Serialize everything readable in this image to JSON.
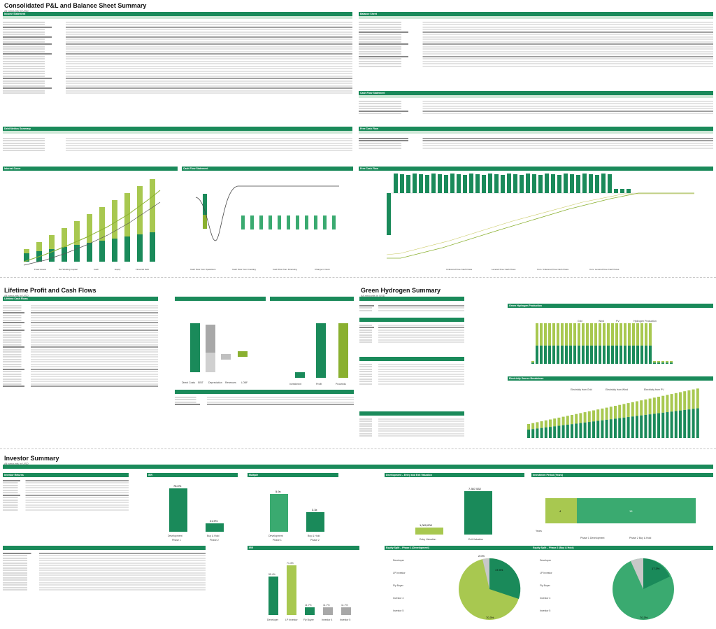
{
  "sections": {
    "consolidated": {
      "title": "Consolidated P&L and Balance Sheet Summary",
      "sub": "All amounts in USD"
    },
    "lifetime": {
      "title": "Lifetime Profit and Cash Flows",
      "sub": "All amounts in USD"
    },
    "green": {
      "title": "Green Hydrogen Summary",
      "sub": "All amounts in USD"
    },
    "investor": {
      "title": "Investor Summary",
      "sub": "All amounts in USD"
    }
  },
  "tables": {
    "income": "Income Statement",
    "balance": "Balance Sheet",
    "cashflow": "Cash Flow Statement",
    "debt": "Debt Metrics Summary",
    "fcf": "Free Cash Flow"
  },
  "panels": {
    "interest": "Interest Cover",
    "cash_flow_statement": "Cash Flow Statement",
    "fcf_chart": "Free Cash Flow",
    "lifetime_cf": "Lifetime Cash Flows",
    "green_hydrogen": "Green Hydrogen Production",
    "electricity": "Electricity Source Breakdown",
    "investor_entry": "Investor Returns",
    "irr": "IRR",
    "multiple": "Multiple",
    "valuation": "Development – Entry and Exit Valuation",
    "investment_period": "Investment Period (Years)",
    "developer_irr": "IRR",
    "entry_pie": "Equity Split – Phase 1 (Development)",
    "exit_pie": "Equity Split – Phase 2 (Buy & Hold)"
  },
  "charts": {
    "entry_valuation": "1,000,000",
    "exit_valuation": "7,357,532",
    "irr_dev": "78.0%",
    "irr_buy": "21.9%",
    "mult_dev": "5.9x",
    "mult_buy": "3.3x",
    "pie_a": "70.3%",
    "pie_b": "17.3%",
    "pie_c": "2.0%",
    "pie2_a": "70.3%",
    "pie2_b": "17.3%",
    "bar_irr": [
      "55.4%",
      "71.4%",
      "11.7%",
      "11.7%",
      "11.7%"
    ],
    "period_a": "4",
    "period_b": "15"
  },
  "legends": {
    "interest": [
      "Fixed Assets",
      "Net Working Capital",
      "Cash",
      "Equity",
      "Financial Debt"
    ],
    "cfs": [
      "Cash Flow from Operations",
      "Cash Flow from Investing",
      "Cash Flow from Financing",
      "Change in Cash"
    ],
    "fcf": [
      "Unlevered Free Cash Flows",
      "Levered Free Cash Flows",
      "Cum. Unlevered Free Cash Flows",
      "Cum. Levered Free Cash Flows"
    ],
    "lifetime": [
      "Direct Costs",
      "EBIT",
      "Depreciation",
      "Revenues",
      "LOBF"
    ],
    "lifetime_labels": [
      "Investment",
      "Profit",
      "Proceeds"
    ],
    "gh": [
      "Grid",
      "Wind",
      "PV",
      "Hydrogen Production"
    ],
    "elec": [
      "Electricity from Grid",
      "Electricity from Wind",
      "Electricity from PV"
    ],
    "period": [
      "Phase 1 Development",
      "Phase 2 Buy & Hold"
    ],
    "irr_cats": [
      "Development",
      "Buy & Hold"
    ],
    "irr_phases": [
      "Phase 1",
      "Phase 2"
    ],
    "bar_cats": [
      "Developer",
      "LP Investor",
      "Fly Buyer",
      "Investor 4",
      "Investor 5"
    ],
    "pie": [
      "Developer",
      "LP Investor",
      "Fly Buyer",
      "Investor 4",
      "Investor 5"
    ],
    "valuation_cats": [
      "Entry Valuation",
      "Exit Valuation"
    ],
    "period_axis": "Years"
  }
}
